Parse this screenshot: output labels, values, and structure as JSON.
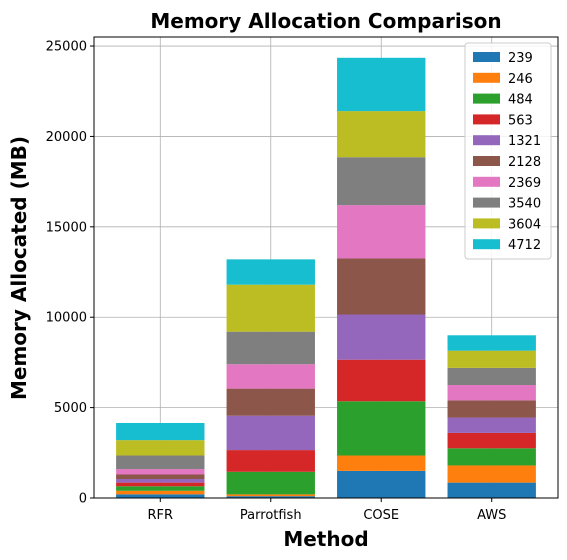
{
  "chart_data": {
    "type": "bar",
    "stacked": true,
    "title": "Memory Allocation Comparison",
    "xlabel": "Method",
    "ylabel": "Memory Allocated (MB)",
    "categories": [
      "RFR",
      "Parrotfish",
      "COSE",
      "AWS"
    ],
    "ylim": [
      0,
      25500
    ],
    "yticks": [
      0,
      5000,
      10000,
      15000,
      20000,
      25000
    ],
    "grid": true,
    "legend_position": "top-right",
    "series": [
      {
        "name": "239",
        "color": "#1f77b4",
        "values": [
          200,
          100,
          1500,
          850
        ]
      },
      {
        "name": "246",
        "color": "#ff7f0e",
        "values": [
          200,
          100,
          850,
          950
        ]
      },
      {
        "name": "484",
        "color": "#2ca02c",
        "values": [
          250,
          1250,
          3000,
          950
        ]
      },
      {
        "name": "563",
        "color": "#d62728",
        "values": [
          200,
          1200,
          2300,
          850
        ]
      },
      {
        "name": "1321",
        "color": "#9467bd",
        "values": [
          200,
          1900,
          2500,
          850
        ]
      },
      {
        "name": "2128",
        "color": "#8c564b",
        "values": [
          250,
          1500,
          3100,
          950
        ]
      },
      {
        "name": "2369",
        "color": "#e377c2",
        "values": [
          300,
          1350,
          2950,
          850
        ]
      },
      {
        "name": "3540",
        "color": "#7f7f7f",
        "values": [
          750,
          1800,
          2650,
          950
        ]
      },
      {
        "name": "3604",
        "color": "#bcbd22",
        "values": [
          850,
          2600,
          2550,
          950
        ]
      },
      {
        "name": "4712",
        "color": "#17becf",
        "values": [
          950,
          1400,
          2950,
          850
        ]
      }
    ]
  }
}
